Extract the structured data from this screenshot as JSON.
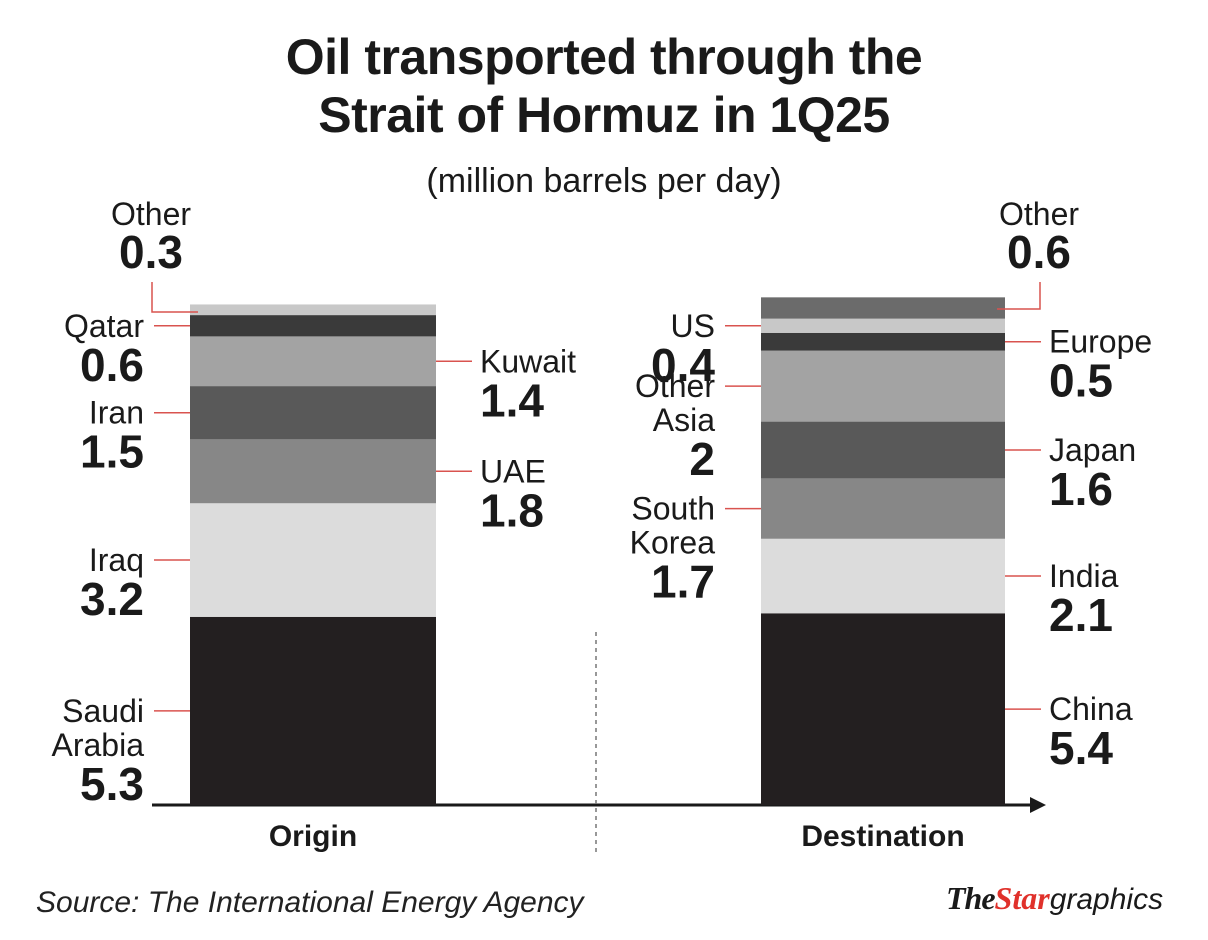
{
  "title_line1": "Oil transported through the",
  "title_line2": "Strait of Hormuz in 1Q25",
  "subtitle": "(million barrels per day)",
  "source": "Source: The International Energy Agency",
  "brand": {
    "the": "The",
    "star": "Star",
    "graphics": "graphics"
  },
  "colors": {
    "leader": "#d9534f",
    "axis": "#1a1a1a",
    "brand_red": "#e0312b"
  },
  "chart_data": {
    "type": "bar",
    "stacked": true,
    "categories": [
      "Origin",
      "Destination"
    ],
    "stacks": [
      {
        "category": "Origin",
        "segments": [
          {
            "name": "Saudi Arabia",
            "label_lines": [
              "Saudi",
              "Arabia"
            ],
            "value": 5.3,
            "value_label": "5.3",
            "color": "#231f20",
            "side": "left"
          },
          {
            "name": "Iraq",
            "label_lines": [
              "Iraq"
            ],
            "value": 3.2,
            "value_label": "3.2",
            "color": "#dcdcdc",
            "side": "left"
          },
          {
            "name": "UAE",
            "label_lines": [
              "UAE"
            ],
            "value": 1.8,
            "value_label": "1.8",
            "color": "#878787",
            "side": "right"
          },
          {
            "name": "Iran",
            "label_lines": [
              "Iran"
            ],
            "value": 1.5,
            "value_label": "1.5",
            "color": "#595959",
            "side": "left"
          },
          {
            "name": "Kuwait",
            "label_lines": [
              "Kuwait"
            ],
            "value": 1.4,
            "value_label": "1.4",
            "color": "#a3a3a3",
            "side": "right"
          },
          {
            "name": "Qatar",
            "label_lines": [
              "Qatar"
            ],
            "value": 0.6,
            "value_label": "0.6",
            "color": "#3a3a3a",
            "side": "left"
          },
          {
            "name": "Other",
            "label_lines": [
              "Other"
            ],
            "value": 0.3,
            "value_label": "0.3",
            "color": "#c8c8c8",
            "side": "top-left"
          }
        ]
      },
      {
        "category": "Destination",
        "segments": [
          {
            "name": "China",
            "label_lines": [
              "China"
            ],
            "value": 5.4,
            "value_label": "5.4",
            "color": "#231f20",
            "side": "right"
          },
          {
            "name": "India",
            "label_lines": [
              "India"
            ],
            "value": 2.1,
            "value_label": "2.1",
            "color": "#dcdcdc",
            "side": "right"
          },
          {
            "name": "South Korea",
            "label_lines": [
              "South",
              "Korea"
            ],
            "value": 1.7,
            "value_label": "1.7",
            "color": "#878787",
            "side": "left"
          },
          {
            "name": "Japan",
            "label_lines": [
              "Japan"
            ],
            "value": 1.6,
            "value_label": "1.6",
            "color": "#595959",
            "side": "right"
          },
          {
            "name": "Other Asia",
            "label_lines": [
              "Other",
              "Asia"
            ],
            "value": 2,
            "value_label": "2",
            "color": "#a3a3a3",
            "side": "left"
          },
          {
            "name": "Europe",
            "label_lines": [
              "Europe"
            ],
            "value": 0.5,
            "value_label": "0.5",
            "color": "#3a3a3a",
            "side": "right"
          },
          {
            "name": "US",
            "label_lines": [
              "US"
            ],
            "value": 0.4,
            "value_label": "0.4",
            "color": "#c8c8c8",
            "side": "left"
          },
          {
            "name": "Other",
            "label_lines": [
              "Other"
            ],
            "value": 0.6,
            "value_label": "0.6",
            "color": "#6b6b6b",
            "side": "top-right"
          }
        ]
      }
    ]
  }
}
